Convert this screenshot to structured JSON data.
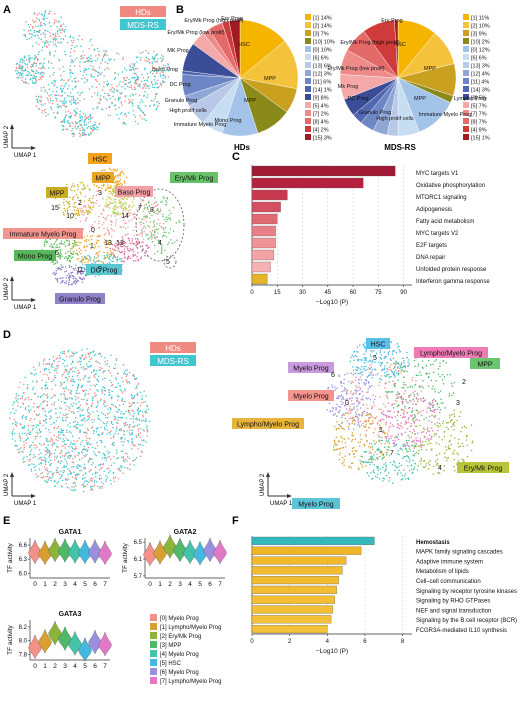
{
  "panels": {
    "A": "A",
    "B": "B",
    "C": "C",
    "D": "D",
    "E": "E",
    "F": "F"
  },
  "colors": {
    "hds": "#f08a80",
    "mds": "#3fc6cf",
    "bar_c": [
      "#a01a36",
      "#b52240",
      "#c73a4f",
      "#d44f5f",
      "#e06a74",
      "#e97f86",
      "#ef9196",
      "#f3a2a5",
      "#f6b1b2",
      "#e7b429"
    ],
    "bar_f": [
      "#34b9bd",
      "#f0b429",
      "#f2b92c",
      "#f2ba2f",
      "#f2bc30",
      "#f3bd33",
      "#f3be34",
      "#f3bf36",
      "#f4c038",
      "#f4c13a",
      "#f4c23b",
      "#f5c33d"
    ]
  },
  "panel_a": {
    "legend": [
      "HDs",
      "MDS-RS"
    ],
    "axis_x": "UMAP 1",
    "axis_y": "UMAP 2",
    "cluster_labels": [
      {
        "text": "HSC",
        "color": "#f4a21c"
      },
      {
        "text": "MPP",
        "color": "#e8a423"
      },
      {
        "text": "MPP",
        "color": "#c9ae22"
      },
      {
        "text": "Baso Prog",
        "color": "#f4a0a5"
      },
      {
        "text": "Ery/Mk Prog",
        "color": "#68c26a"
      },
      {
        "text": "Immature Myelo Prog",
        "color": "#f3958f"
      },
      {
        "text": "Mono Prog",
        "color": "#56b85a"
      },
      {
        "text": "DC Prog",
        "color": "#58c7d2"
      },
      {
        "text": "Granulo Prog",
        "color": "#8f82c6"
      }
    ],
    "cluster_ids": [
      "0",
      "1",
      "2",
      "3",
      "4",
      "5",
      "6",
      "7",
      "8",
      "9",
      "10",
      "11",
      "12",
      "13",
      "14",
      "15"
    ]
  },
  "panel_b": {
    "hds_label": "HDs",
    "mds_label": "MDS-RS",
    "hds_slice_labels": [
      "HSC",
      "MPP",
      "MPP",
      "Mono Prog",
      "Immature Myelo Prog",
      "High prolif cells",
      "Granulo Prog",
      "DC Prog",
      "Baso Prog",
      "MK Prog",
      "Ery/Mk Prog (low prolif)",
      "Ery/Mk Prog (high prolif)",
      "Ery Prog"
    ],
    "mds_slice_labels": [
      "HSC",
      "MPP",
      "MPP",
      "Lympho Prog",
      "Immature Myelo Prog",
      "High prolif cells",
      "Granulo Prog",
      "DC Prog",
      "Mk Prog",
      "Ery/Mk Prog (low prolif)",
      "Ery/Mk Prog (high prolif)",
      "Ery Prog"
    ],
    "hds_legend": [
      "[1] 14%",
      "[2] 14%",
      "[3] 7%",
      "[10] 10%",
      "[0] 10%",
      "[6] 6%",
      "[13] 6%",
      "[12] 3%",
      "[11] 6%",
      "[14] 1%",
      "[9] 8%",
      "[5] 4%",
      "[7] 2%",
      "[8] 4%",
      "[4] 2%",
      "[15] 3%"
    ],
    "mds_legend": [
      "[1] 11%",
      "[2] 10%",
      "[3] 9%",
      "[10] 2%",
      "[0] 12%",
      "[6] 6%",
      "[13] 3%",
      "[12] 4%",
      "[11] 4%",
      "[14] 3%",
      "[9] 5%",
      "[5] 7%",
      "[7] 7%",
      "[8] 7%",
      "[4] 9%",
      "[15] 1%"
    ],
    "legend_colors": [
      "#f4b400",
      "#f5c23b",
      "#c9a020",
      "#8a8a1a",
      "#a3c4e8",
      "#c7ddf2",
      "#b9c8e6",
      "#8fa6d6",
      "#6d86c6",
      "#4f66b0",
      "#3a4d96",
      "#f4a8a8",
      "#ee8a8a",
      "#e46a6a",
      "#cf3a3a",
      "#a01a20"
    ]
  },
  "chart_data": [
    {
      "type": "bar",
      "orientation": "horizontal",
      "categories": [
        "MYC targets V1",
        "Oxidative phosphorylation",
        "MTORC1 signaling",
        "Adipogenesis",
        "Fatty acid metabolism",
        "MYC targets V2",
        "E2F targets",
        "DNA repair",
        "Unfolded protein response",
        "Interferon gamma response"
      ],
      "values": [
        85,
        66,
        21,
        17,
        15,
        14,
        14,
        13,
        11,
        9
      ],
      "xlabel": "−Log10 (P)",
      "xticks": [
        "0",
        "15",
        "30",
        "45",
        "60",
        "75",
        "90"
      ],
      "xlim": [
        0,
        95
      ]
    },
    {
      "type": "bar",
      "orientation": "horizontal",
      "categories": [
        "Hemostasis",
        "MAPK family signaling cascades",
        "Adaptive immune system",
        "Metabolism of lipids",
        "Cell–cell communication",
        "Signaling by receptor tyrosine kinases",
        "Signaling by RHO GTPases",
        "NEF and signal transduction",
        "Signaling by the B cell receptor (BCR)",
        "FCGR3A-mediated IL10 synthesis"
      ],
      "values": [
        6.5,
        5.8,
        5.0,
        4.8,
        4.6,
        4.5,
        4.4,
        4.3,
        4.2,
        4.0
      ],
      "xlabel": "−Log10 (P)",
      "xticks": [
        "0",
        "2",
        "4",
        "6",
        "8"
      ],
      "xlim": [
        0,
        8.5
      ]
    },
    {
      "type": "violin",
      "title": "GATA1",
      "categories": [
        "0",
        "1",
        "2",
        "3",
        "4",
        "5",
        "6",
        "7"
      ],
      "values": [
        6.44,
        6.42,
        6.48,
        6.47,
        6.45,
        6.44,
        6.45,
        6.42
      ],
      "yticks": [
        "6.0",
        "6.3",
        "6.6"
      ],
      "ylim": [
        5.9,
        6.75
      ],
      "ylabel": "TF activity"
    },
    {
      "type": "violin",
      "title": "GATA2",
      "categories": [
        "0",
        "1",
        "2",
        "3",
        "4",
        "5",
        "6",
        "7"
      ],
      "values": [
        6.2,
        6.24,
        6.38,
        6.3,
        6.25,
        6.22,
        6.3,
        6.25
      ],
      "yticks": [
        "5.7",
        "6.1",
        "6.5"
      ],
      "ylim": [
        5.65,
        6.6
      ],
      "ylabel": "TF activity"
    },
    {
      "type": "violin",
      "title": "GATA3",
      "categories": [
        "0",
        "1",
        "2",
        "3",
        "4",
        "5",
        "6",
        "7"
      ],
      "values": [
        7.9,
        7.98,
        8.1,
        8.02,
        7.95,
        7.86,
        7.97,
        7.94
      ],
      "yticks": [
        "7.8",
        "8.0",
        "8.2"
      ],
      "ylim": [
        7.72,
        8.3
      ],
      "ylabel": "TF activity"
    }
  ],
  "panel_d": {
    "legend": [
      "HDs",
      "MDS-RS"
    ],
    "axis_x": "UMAP 1",
    "axis_y": "UMAP 2",
    "labels": [
      {
        "text": "HSC",
        "color": "#5bc0e8"
      },
      {
        "text": "Lympho/Myelo Prog",
        "color": "#ee7bb6"
      },
      {
        "text": "Myelo Prog",
        "color": "#c99ae0"
      },
      {
        "text": "MPP",
        "color": "#6cc46e"
      },
      {
        "text": "Myelo Prog",
        "color": "#f3948e"
      },
      {
        "text": "Lympho/Myelo Prog",
        "color": "#e8b43c"
      },
      {
        "text": "Ery/Mk Prog",
        "color": "#b9c43a"
      },
      {
        "text": "Myelo Prog",
        "color": "#5bc4d6"
      }
    ],
    "ids": [
      "0",
      "1",
      "2",
      "3",
      "4",
      "5",
      "6",
      "7"
    ]
  },
  "panel_e": {
    "legend": [
      "[0] Myelo Prog",
      "[1] Lympho/Myelo Prog",
      "[2] Ery/Mk Prog",
      "[3] MPP",
      "[4] Myelo Prog",
      "[5] HSC",
      "[6] Myelo Prog",
      "[7] Lympho/Myelo Prog"
    ],
    "colors": [
      "#f3908a",
      "#d8a030",
      "#8cb43a",
      "#4fb86a",
      "#45c3a8",
      "#45b8e0",
      "#9b8fe0",
      "#e07ac6"
    ]
  }
}
